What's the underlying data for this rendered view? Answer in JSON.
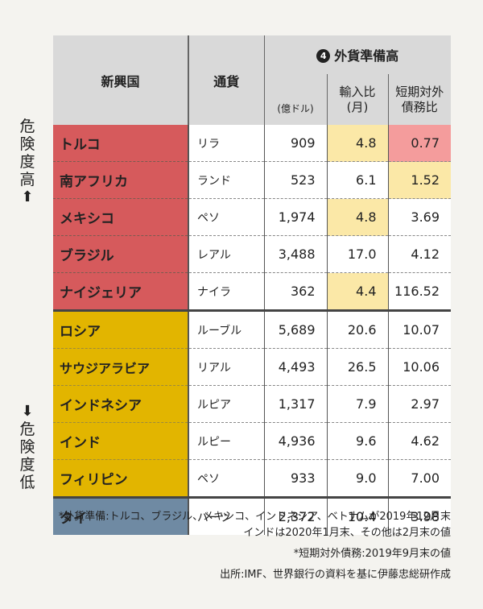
{
  "side": {
    "high_label": [
      "危",
      "険",
      "度",
      "高"
    ],
    "high_arrow": "⬆",
    "low_arrow": "⬇",
    "low_label": [
      "危",
      "険",
      "度",
      "低"
    ]
  },
  "header": {
    "country": "新興国",
    "currency": "通貨",
    "group_number": "4",
    "group_title": "外貨準備高",
    "unit": "(億ドル)",
    "import_ratio_line1": "輸入比",
    "import_ratio_line2": "(月)",
    "debt_ratio_line1": "短期対外",
    "debt_ratio_line2": "債務比"
  },
  "rows": [
    {
      "country": "トルコ",
      "currency": "リラ",
      "reserves": "909",
      "import_ratio": "4.8",
      "debt_ratio": "0.77"
    },
    {
      "country": "南アフリカ",
      "currency": "ランド",
      "reserves": "523",
      "import_ratio": "6.1",
      "debt_ratio": "1.52"
    },
    {
      "country": "メキシコ",
      "currency": "ペソ",
      "reserves": "1,974",
      "import_ratio": "4.8",
      "debt_ratio": "3.69"
    },
    {
      "country": "ブラジル",
      "currency": "レアル",
      "reserves": "3,488",
      "import_ratio": "17.0",
      "debt_ratio": "4.12"
    },
    {
      "country": "ナイジェリア",
      "currency": "ナイラ",
      "reserves": "362",
      "import_ratio": "4.4",
      "debt_ratio": "116.52"
    },
    {
      "country": "ロシア",
      "currency": "ルーブル",
      "reserves": "5,689",
      "import_ratio": "20.6",
      "debt_ratio": "10.07"
    },
    {
      "country": "サウジアラビア",
      "currency": "リアル",
      "reserves": "4,493",
      "import_ratio": "26.5",
      "debt_ratio": "10.06"
    },
    {
      "country": "インドネシア",
      "currency": "ルピア",
      "reserves": "1,317",
      "import_ratio": "7.9",
      "debt_ratio": "2.97"
    },
    {
      "country": "インド",
      "currency": "ルピー",
      "reserves": "4,936",
      "import_ratio": "9.6",
      "debt_ratio": "4.62"
    },
    {
      "country": "フィリピン",
      "currency": "ペソ",
      "reserves": "933",
      "import_ratio": "9.0",
      "debt_ratio": "7.00"
    },
    {
      "country": "タイ",
      "currency": "バーツ",
      "reserves": "2,372",
      "import_ratio": "10.4",
      "debt_ratio": "3.98"
    }
  ],
  "colors": {
    "high_risk": "#d65a5c",
    "mid_risk": "#e2b500",
    "low_risk": "#6f8aa3",
    "highlight_yellow": "#fbe8a7",
    "highlight_red": "#f49c9c"
  },
  "notes": {
    "line1": "*外貨準備:トルコ、ブラジル、メキシコ、インドネシア、ベトナムが2019年12月末",
    "line2": "インドは2020年1月末、その他は2月末の値",
    "line3": "*短期対外債務:2019年9月末の値",
    "source": "出所:IMF、世界銀行の資料を基に伊藤忠総研作成"
  }
}
